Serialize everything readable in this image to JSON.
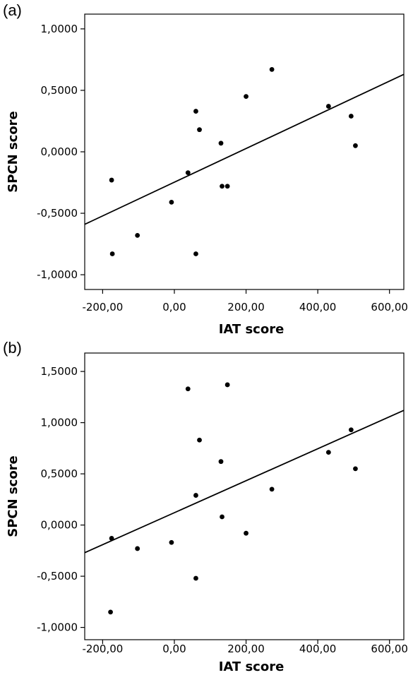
{
  "chart_data": [
    {
      "type": "scatter",
      "panel_label": "(a)",
      "xlabel": "IAT score",
      "ylabel": "SPCN score",
      "xlim": [
        -250,
        640
      ],
      "ylim": [
        -1.12,
        1.12
      ],
      "xticks": [
        -200,
        0,
        200,
        400,
        600
      ],
      "xtick_labels": [
        "-200,00",
        "0,00",
        "200,00",
        "400,00",
        "600,00"
      ],
      "yticks": [
        -1.0,
        -0.5,
        0.0,
        0.5,
        1.0
      ],
      "ytick_labels": [
        "-1,0000",
        "-0,5000",
        "0,0000",
        "0,5000",
        "1,0000"
      ],
      "points": [
        {
          "x": -175,
          "y": -0.23
        },
        {
          "x": -173,
          "y": -0.83
        },
        {
          "x": -103,
          "y": -0.68
        },
        {
          "x": -8,
          "y": -0.41
        },
        {
          "x": 38,
          "y": -0.17
        },
        {
          "x": 60,
          "y": 0.33
        },
        {
          "x": 60,
          "y": -0.83
        },
        {
          "x": 70,
          "y": 0.18
        },
        {
          "x": 130,
          "y": 0.07
        },
        {
          "x": 133,
          "y": -0.28
        },
        {
          "x": 148,
          "y": -0.28
        },
        {
          "x": 200,
          "y": 0.45
        },
        {
          "x": 272,
          "y": 0.67
        },
        {
          "x": 430,
          "y": 0.37
        },
        {
          "x": 493,
          "y": 0.29
        },
        {
          "x": 505,
          "y": 0.05
        }
      ],
      "fit_line": {
        "x": [
          -250,
          640
        ],
        "y": [
          -0.59,
          0.63
        ]
      },
      "grid": false
    },
    {
      "type": "scatter",
      "panel_label": "(b)",
      "xlabel": "IAT score",
      "ylabel": "SPCN score",
      "xlim": [
        -250,
        640
      ],
      "ylim": [
        -1.12,
        1.68
      ],
      "xticks": [
        -200,
        0,
        200,
        400,
        600
      ],
      "xtick_labels": [
        "-200,00",
        "0,00",
        "200,00",
        "400,00",
        "600,00"
      ],
      "yticks": [
        -1.0,
        -0.5,
        0.0,
        0.5,
        1.0,
        1.5
      ],
      "ytick_labels": [
        "-1,0000",
        "-0,5000",
        "0,0000",
        "0,5000",
        "1,0000",
        "1,5000"
      ],
      "points": [
        {
          "x": -175,
          "y": -0.13
        },
        {
          "x": -178,
          "y": -0.85
        },
        {
          "x": -103,
          "y": -0.23
        },
        {
          "x": -8,
          "y": -0.17
        },
        {
          "x": 38,
          "y": 1.33
        },
        {
          "x": 148,
          "y": 1.37
        },
        {
          "x": 60,
          "y": 0.29
        },
        {
          "x": 60,
          "y": -0.52
        },
        {
          "x": 70,
          "y": 0.83
        },
        {
          "x": 130,
          "y": 0.62
        },
        {
          "x": 133,
          "y": 0.08
        },
        {
          "x": 200,
          "y": -0.08
        },
        {
          "x": 272,
          "y": 0.35
        },
        {
          "x": 430,
          "y": 0.71
        },
        {
          "x": 493,
          "y": 0.93
        },
        {
          "x": 505,
          "y": 0.55
        }
      ],
      "fit_line": {
        "x": [
          -250,
          640
        ],
        "y": [
          -0.27,
          1.12
        ]
      },
      "grid": false
    }
  ]
}
